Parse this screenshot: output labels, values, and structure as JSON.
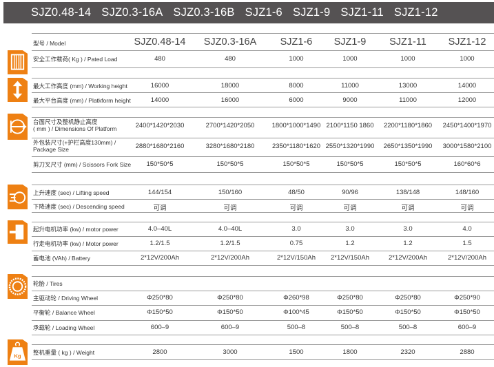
{
  "banner_models": [
    "SJZ0.48-14",
    "SJZ0.3-16A",
    "SJZ0.3-16B",
    "SJZ1-6",
    "SJZ1-9",
    "SJZ1-11",
    "SJZ1-12"
  ],
  "colors": {
    "accent": "#ee8013",
    "banner": "#555253"
  },
  "table": {
    "model_label": "型号 / Model",
    "models": [
      "SJZ0.48-14",
      "SJZ0.3-16A",
      "SJZ1-6",
      "SJZ1-9",
      "SJZ1-11",
      "SJZ1-12"
    ],
    "rows": [
      {
        "label": "安全工作载荷( Kg ) / Pated Load",
        "values": [
          "480",
          "480",
          "1000",
          "1000",
          "1000",
          "1000"
        ]
      },
      {
        "label": "最大工作高度 (mm) / Working height",
        "values": [
          "16000",
          "18000",
          "8000",
          "11000",
          "13000",
          "14000"
        ]
      },
      {
        "label": "最大平台高度 (mm) / Platkform height",
        "values": [
          "14000",
          "16000",
          "6000",
          "9000",
          "11000",
          "12000"
        ]
      },
      {
        "label": "台面尺寸及整机静止高度\n( mm ) / Dimensions Of Platform",
        "values": [
          "2400*1420*2030",
          "2700*1420*2050",
          "1800*1000*1490",
          "2100*1150 1860",
          "2200*1180*1860",
          "2450*1400*1970"
        ]
      },
      {
        "label": "外包装尺寸(+护栏高度130mm) /\nPackage Size",
        "values": [
          "2880*1680*2160",
          "3280*1680*2180",
          "2350*1180*1620",
          "2550*1320*1990",
          "2650*1350*1990",
          "3000*1580*2100"
        ]
      },
      {
        "label": "剪刀叉尺寸 (mm) / Scissors Fork Size",
        "values": [
          "150*50*5",
          "150*50*5",
          "150*50*5",
          "150*50*5",
          "150*50*5",
          "160*60*6"
        ]
      },
      {
        "label": "上升速度 (sec) / Lifting speed",
        "values": [
          "144/154",
          "150/160",
          "48/50",
          "90/96",
          "138/148",
          "148/160"
        ]
      },
      {
        "label": "下降速度 (sec) / Descending speed",
        "values": [
          "可调",
          "可调",
          "可调",
          "可调",
          "可调",
          "可调"
        ]
      },
      {
        "label": "起升电机功率 (kw) / motor power",
        "values": [
          "4.0–40L",
          "4.0–40L",
          "3.0",
          "3.0",
          "3.0",
          "4.0"
        ]
      },
      {
        "label": "行走电机功率 (kw) / Motor power",
        "values": [
          "1.2/1.5",
          "1.2/1.5",
          "0.75",
          "1.2",
          "1.2",
          "1.5"
        ]
      },
      {
        "label": "蓄电池 (VAh) / Battery",
        "values": [
          "2*12V/200Ah",
          "2*12V/200Ah",
          "2*12V/150Ah",
          "2*12V/150Ah",
          "2*12V/200Ah",
          "2*12V/200Ah"
        ]
      },
      {
        "label": "轮胎 / Tires",
        "values": [
          "",
          "",
          "",
          "",
          "",
          ""
        ]
      },
      {
        "label": "主驱动轮 / Driving Wheel",
        "values": [
          "Φ250*80",
          "Φ250*80",
          "Φ260*98",
          "Φ250*80",
          "Φ250*80",
          "Φ250*90"
        ]
      },
      {
        "label": "平衡轮 / Balance Wheel",
        "values": [
          "Φ150*50",
          "Φ150*50",
          "Φ100*45",
          "Φ150*50",
          "Φ150*50",
          "Φ150*50"
        ]
      },
      {
        "label": "承载轮 / Loading Wheel",
        "values": [
          "600–9",
          "600–9",
          "500–8",
          "500–8",
          "500–8",
          "600–9"
        ]
      },
      {
        "label": "整机重量 ( kg ) / Weight",
        "values": [
          "2800",
          "3000",
          "1500",
          "1800",
          "2320",
          "2880"
        ]
      }
    ]
  },
  "icons": [
    "load-icon",
    "height-arrow-icon",
    "dimension-icon",
    "speed-icon",
    "motor-icon",
    "tire-icon",
    "weight-kg-icon"
  ],
  "weight_icon_text": "Kg"
}
